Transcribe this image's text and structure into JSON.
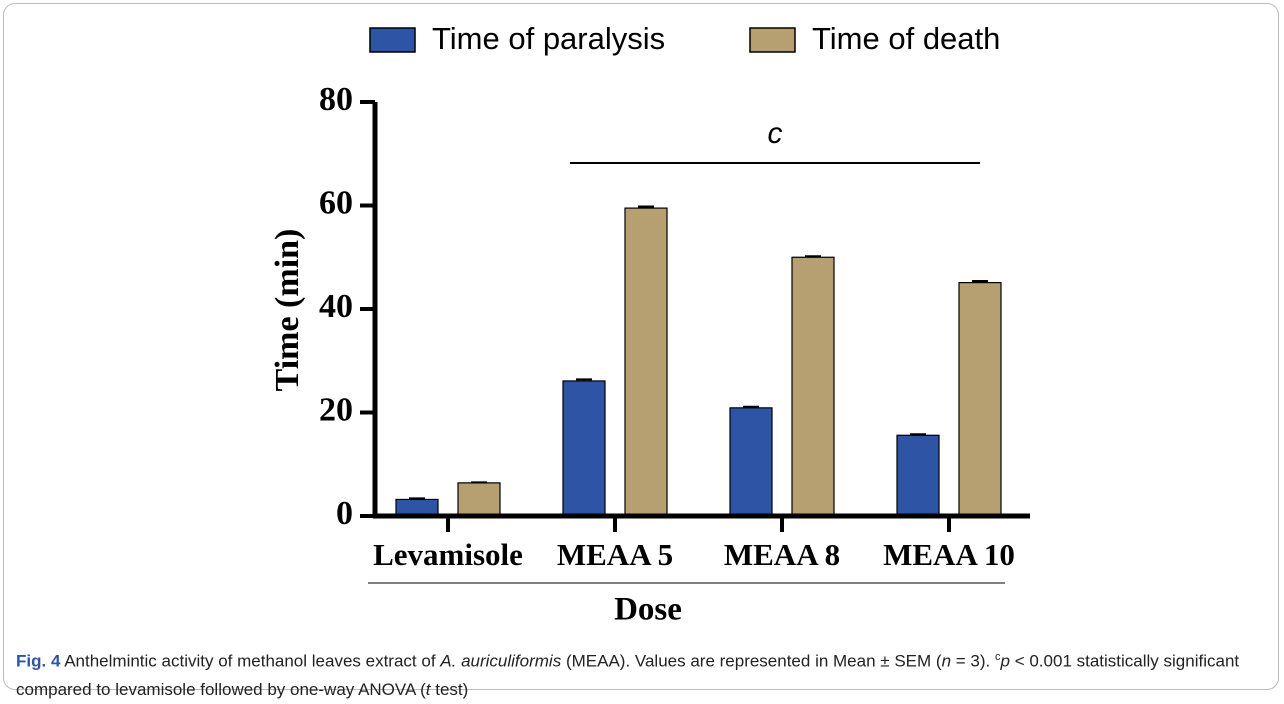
{
  "chart_data": {
    "type": "bar",
    "categories": [
      "Levamisole",
      "MEAA 5",
      "MEAA 8",
      "MEAA 10"
    ],
    "series": [
      {
        "name": "Time of paralysis",
        "color": "#2e55a5",
        "values": [
          3.2,
          26.1,
          20.9,
          15.6
        ],
        "errors": [
          0.2,
          0.3,
          0.2,
          0.2
        ]
      },
      {
        "name": "Time of death",
        "color": "#b69f71",
        "values": [
          6.4,
          59.5,
          50.0,
          45.1
        ],
        "errors": [
          0.1,
          0.3,
          0.2,
          0.3
        ]
      }
    ],
    "ylim": [
      0,
      80
    ],
    "yticks": [
      0,
      20,
      40,
      60,
      80
    ],
    "y_label": "Time (min)",
    "x_label": "Dose",
    "annotation": "c",
    "legend": "top"
  },
  "caption": [
    "Fig. 4",
    "Anthelmintic activity of methanol leaves extract of",
    "A. auriculiformis",
    "(MEAA). Values are represented in Mean ± SEM (",
    "n",
    "= 3).",
    "c",
    "p",
    "< 0.001 statistically significant compared to levamisole followed by one-way ANOVA (",
    "t",
    "test)"
  ]
}
